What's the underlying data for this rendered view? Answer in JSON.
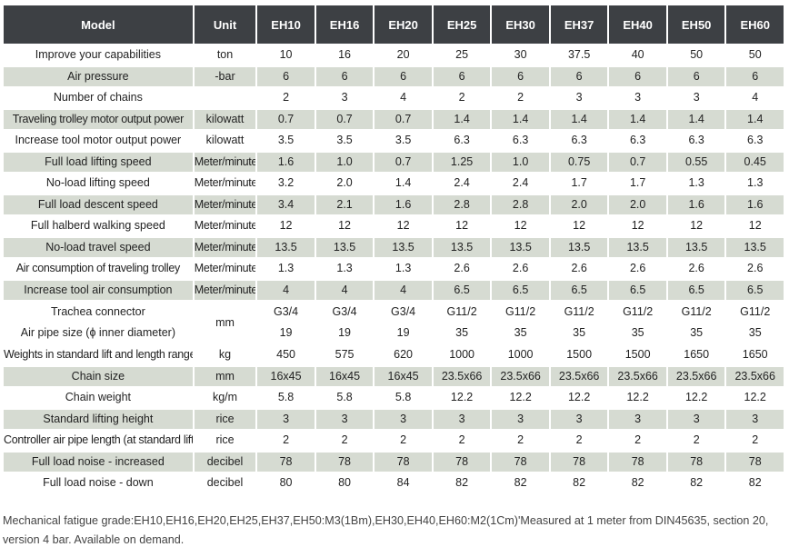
{
  "header": {
    "model": "Model",
    "unit": "Unit",
    "models": [
      "EH10",
      "EH16",
      "EH20",
      "EH25",
      "EH30",
      "EH37",
      "EH40",
      "EH50",
      "EH60"
    ]
  },
  "rows": [
    {
      "label": "Improve your capabilities",
      "unit": "ton",
      "values": [
        "10",
        "16",
        "20",
        "25",
        "30",
        "37.5",
        "40",
        "50",
        "50"
      ]
    },
    {
      "label": "Air pressure",
      "unit": "-bar",
      "values": [
        "6",
        "6",
        "6",
        "6",
        "6",
        "6",
        "6",
        "6",
        "6"
      ]
    },
    {
      "label": "Number of chains",
      "unit": "",
      "values": [
        "2",
        "3",
        "4",
        "2",
        "2",
        "3",
        "3",
        "3",
        "4"
      ]
    },
    {
      "label": "Traveling trolley motor output power",
      "unit": "kilowatt",
      "values": [
        "0.7",
        "0.7",
        "0.7",
        "1.4",
        "1.4",
        "1.4",
        "1.4",
        "1.4",
        "1.4"
      ]
    },
    {
      "label": "Increase tool motor output power",
      "unit": "kilowatt",
      "values": [
        "3.5",
        "3.5",
        "3.5",
        "6.3",
        "6.3",
        "6.3",
        "6.3",
        "6.3",
        "6.3"
      ]
    },
    {
      "label": "Full load lifting speed",
      "unit": "Meter/minute",
      "values": [
        "1.6",
        "1.0",
        "0.7",
        "1.25",
        "1.0",
        "0.75",
        "0.7",
        "0.55",
        "0.45"
      ]
    },
    {
      "label": "No-load lifting speed",
      "unit": "Meter/minute",
      "values": [
        "3.2",
        "2.0",
        "1.4",
        "2.4",
        "2.4",
        "1.7",
        "1.7",
        "1.3",
        "1.3"
      ]
    },
    {
      "label": "Full load descent speed",
      "unit": "Meter/minute",
      "values": [
        "3.4",
        "2.1",
        "1.6",
        "2.8",
        "2.8",
        "2.0",
        "2.0",
        "1.6",
        "1.6"
      ]
    },
    {
      "label": "Full halberd walking speed",
      "unit": "Meter/minute",
      "values": [
        "12",
        "12",
        "12",
        "12",
        "12",
        "12",
        "12",
        "12",
        "12"
      ]
    },
    {
      "label": "No-load travel speed",
      "unit": "Meter/minute",
      "values": [
        "13.5",
        "13.5",
        "13.5",
        "13.5",
        "13.5",
        "13.5",
        "13.5",
        "13.5",
        "13.5"
      ]
    },
    {
      "label": "Air consumption of traveling trolley",
      "unit": "Meter/minute",
      "values": [
        "1.3",
        "1.3",
        "1.3",
        "2.6",
        "2.6",
        "2.6",
        "2.6",
        "2.6",
        "2.6"
      ]
    },
    {
      "label": "Increase tool air consumption",
      "unit": "Meter/minute",
      "values": [
        "4",
        "4",
        "4",
        "6.5",
        "6.5",
        "6.5",
        "6.5",
        "6.5",
        "6.5"
      ]
    }
  ],
  "pipe_row": {
    "label_1": "Trachea connector",
    "label_2": "Air pipe size (ϕ inner diameter)",
    "unit": "mm",
    "connector": [
      "G3/4",
      "G3/4",
      "G3/4",
      "G11/2",
      "G11/2",
      "G11/2",
      "G11/2",
      "G11/2",
      "G11/2"
    ],
    "size": [
      "19",
      "19",
      "19",
      "35",
      "35",
      "35",
      "35",
      "35",
      "35"
    ]
  },
  "rows_after": [
    {
      "label": "Weights in standard lift and length ranges",
      "unit": "kg",
      "values": [
        "450",
        "575",
        "620",
        "1000",
        "1000",
        "1500",
        "1500",
        "1650",
        "1650"
      ]
    },
    {
      "label": "Chain size",
      "unit": "mm",
      "values": [
        "16x45",
        "16x45",
        "16x45",
        "23.5x66",
        "23.5x66",
        "23.5x66",
        "23.5x66",
        "23.5x66",
        "23.5x66"
      ]
    },
    {
      "label": "Chain weight",
      "unit": "kg/m",
      "values": [
        "5.8",
        "5.8",
        "5.8",
        "12.2",
        "12.2",
        "12.2",
        "12.2",
        "12.2",
        "12.2"
      ]
    },
    {
      "label": "Standard lifting height",
      "unit": "rice",
      "values": [
        "3",
        "3",
        "3",
        "3",
        "3",
        "3",
        "3",
        "3",
        "3"
      ]
    },
    {
      "label": "Controller air pipe length (at standard lift",
      "unit": "rice",
      "values": [
        "2",
        "2",
        "2",
        "2",
        "2",
        "2",
        "2",
        "2",
        "2"
      ]
    },
    {
      "label": "Full load noise - increased",
      "unit": "decibel",
      "values": [
        "78",
        "78",
        "78",
        "78",
        "78",
        "78",
        "78",
        "78",
        "78"
      ]
    },
    {
      "label": "Full load noise - down",
      "unit": "decibel",
      "values": [
        "80",
        "80",
        "84",
        "82",
        "82",
        "82",
        "82",
        "82",
        "82"
      ]
    }
  ],
  "footnote": "Mechanical fatigue grade:EH10,EH16,EH20,EH25,EH37,EH50:M3(1Bm),EH30,EH40,EH60:M2(1Cm)'Measured at 1 meter from DIN45635, section 20, version 4 bar. Available on demand."
}
